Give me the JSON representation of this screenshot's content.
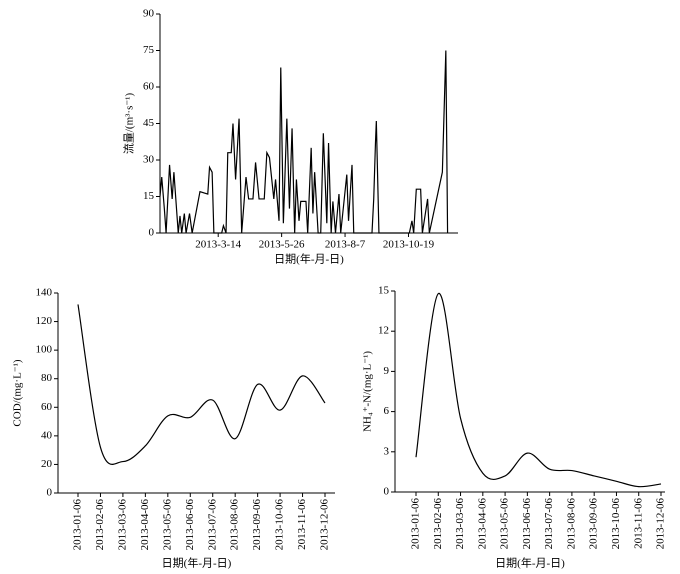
{
  "chart_data": [
    {
      "type": "line",
      "smooth": false,
      "color": "#000000",
      "ylabel": "流量/(m³·s⁻¹)",
      "xlabel": "日期(年-月-日)",
      "x": [
        "2013-1-6",
        "2013-1-8",
        "2013-1-11",
        "2013-1-13",
        "2013-1-17",
        "2013-1-20",
        "2013-1-22",
        "2013-1-24",
        "2013-1-27",
        "2013-1-29",
        "2013-1-31",
        "2013-2-3",
        "2013-2-5",
        "2013-2-9",
        "2013-2-12",
        "2013-2-21",
        "2013-3-2",
        "2013-3-4",
        "2013-3-7",
        "2013-3-9",
        "2013-3-18",
        "2013-3-20",
        "2013-3-23",
        "2013-3-25",
        "2013-3-29",
        "2013-3-31",
        "2013-4-3",
        "2013-4-7",
        "2013-4-10",
        "2013-4-15",
        "2013-4-18",
        "2013-4-23",
        "2013-4-26",
        "2013-4-30",
        "2013-5-6",
        "2013-5-9",
        "2013-5-12",
        "2013-5-17",
        "2013-5-19",
        "2013-5-23",
        "2013-5-25",
        "2013-5-28",
        "2013-6-1",
        "2013-6-4",
        "2013-6-7",
        "2013-6-10",
        "2013-6-12",
        "2013-6-15",
        "2013-6-17",
        "2013-6-23",
        "2013-6-25",
        "2013-6-29",
        "2013-7-1",
        "2013-7-3",
        "2013-7-7",
        "2013-7-10",
        "2013-7-13",
        "2013-7-17",
        "2013-7-19",
        "2013-7-22",
        "2013-7-24",
        "2013-7-27",
        "2013-7-31",
        "2013-8-2",
        "2013-8-9",
        "2013-8-11",
        "2013-8-15",
        "2013-8-17",
        "2013-9-7",
        "2013-9-9",
        "2013-9-11",
        "2013-9-12",
        "2013-9-15",
        "2013-10-20",
        "2013-10-23",
        "2013-10-25",
        "2013-10-28",
        "2013-11-2",
        "2013-11-4",
        "2013-11-10",
        "2013-11-12",
        "2013-11-27",
        "2013-12-1",
        "2013-12-3"
      ],
      "values": [
        15,
        23,
        10,
        0,
        28,
        14,
        25,
        15,
        0,
        7,
        0,
        8,
        0,
        8,
        0,
        17,
        16,
        27,
        25,
        0,
        0,
        3,
        0,
        33,
        33,
        45,
        22,
        47,
        0,
        23,
        14,
        14,
        29,
        14,
        14,
        33,
        31,
        14,
        22,
        5,
        68,
        4,
        47,
        10,
        43,
        0,
        22,
        5,
        13,
        13,
        0,
        35,
        8,
        25,
        0,
        0,
        41,
        4,
        37,
        0,
        13,
        0,
        16,
        0,
        24,
        5,
        28,
        0,
        0,
        14,
        37,
        46,
        0,
        0,
        5,
        0,
        18,
        18,
        0,
        14,
        0,
        25,
        75,
        0
      ],
      "xlim": [
        "2013-1-6",
        "2013-12-15"
      ],
      "xticks": [
        "2013-3-14",
        "2013-5-26",
        "2013-8-7",
        "2013-10-19"
      ],
      "ylim": [
        0,
        90
      ],
      "yticks": [
        0,
        15,
        30,
        45,
        60,
        75,
        90
      ]
    },
    {
      "type": "line",
      "smooth": true,
      "color": "#000000",
      "ylabel": "COD/(mg·L⁻¹)",
      "xlabel": "日期(年-月-日)",
      "categories": [
        "2013-01-06",
        "2013-02-06",
        "2013-03-06",
        "2013-04-06",
        "2013-05-06",
        "2013-06-06",
        "2013-07-06",
        "2013-08-06",
        "2013-09-06",
        "2013-10-06",
        "2013-11-06",
        "2013-12-06"
      ],
      "values": [
        132,
        32,
        22,
        33,
        54,
        53,
        65,
        38,
        76,
        58,
        82,
        63
      ],
      "ylim": [
        0,
        140
      ],
      "yticks": [
        0,
        20,
        40,
        60,
        80,
        100,
        120,
        140
      ]
    },
    {
      "type": "line",
      "smooth": true,
      "color": "#000000",
      "ylabel": "NH₄⁺-N/(mg·L⁻¹)",
      "xlabel": "日期(年-月-日)",
      "categories": [
        "2013-01-06",
        "2013-02-06",
        "2013-03-06",
        "2013-04-06",
        "2013-05-06",
        "2013-06-06",
        "2013-07-06",
        "2013-08-06",
        "2013-09-06",
        "2013-10-06",
        "2013-11-06",
        "2013-12-06"
      ],
      "values": [
        2.6,
        14.8,
        5.5,
        1.4,
        1.2,
        2.9,
        1.7,
        1.6,
        1.2,
        0.8,
        0.4,
        0.6
      ],
      "ylim": [
        0,
        15
      ],
      "yticks": [
        0,
        3,
        6,
        9,
        12,
        15
      ]
    }
  ]
}
